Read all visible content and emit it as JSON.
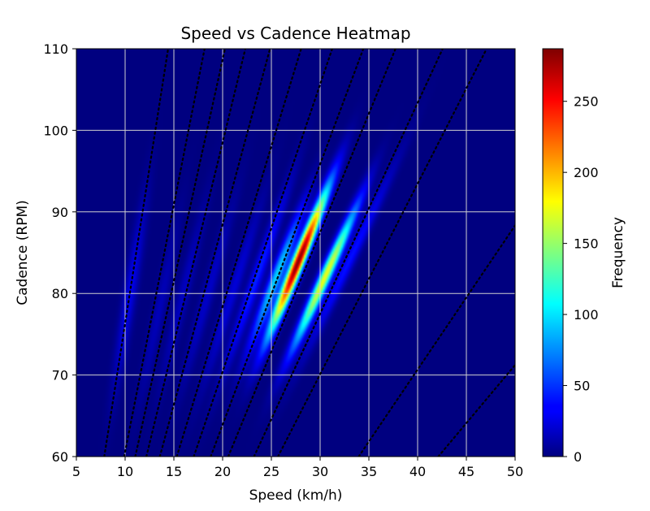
{
  "chart_data": {
    "type": "heatmap",
    "title": "Speed vs Cadence Heatmap",
    "xlabel": "Speed (km/h)",
    "ylabel": "Cadence (RPM)",
    "xlim": [
      5,
      50
    ],
    "ylim": [
      60,
      110
    ],
    "xticks": [
      "5",
      "10",
      "15",
      "20",
      "25",
      "30",
      "35",
      "40",
      "45",
      "50"
    ],
    "yticks": [
      "60",
      "70",
      "80",
      "90",
      "100",
      "110"
    ],
    "grid": true,
    "colormap": "jet",
    "colorbar": {
      "label": "Frequency",
      "range": [
        0,
        287
      ],
      "ticks": [
        "0",
        "50",
        "100",
        "150",
        "200",
        "250"
      ]
    },
    "hotspots": [
      {
        "speed": 27.8,
        "cadence": 84,
        "frequency": 285
      },
      {
        "speed": 30.5,
        "cadence": 82,
        "frequency": 175
      },
      {
        "speed": 25.5,
        "cadence": 82,
        "frequency": 95
      },
      {
        "speed": 23.5,
        "cadence": 82,
        "frequency": 45
      },
      {
        "speed": 33.0,
        "cadence": 84,
        "frequency": 40
      },
      {
        "speed": 21.0,
        "cadence": 80,
        "frequency": 25
      },
      {
        "speed": 18.5,
        "cadence": 80,
        "frequency": 20
      },
      {
        "speed": 16.0,
        "cadence": 80,
        "frequency": 18
      },
      {
        "speed": 13.5,
        "cadence": 78,
        "frequency": 16
      },
      {
        "speed": 10.5,
        "cadence": 80,
        "frequency": 30
      }
    ],
    "gear_lines_km_h_per_rpm": [
      0.131,
      0.165,
      0.184,
      0.203,
      0.226,
      0.255,
      0.284,
      0.313,
      0.343,
      0.387,
      0.428,
      0.566,
      0.702
    ],
    "gear_line_style": "black dotted"
  }
}
